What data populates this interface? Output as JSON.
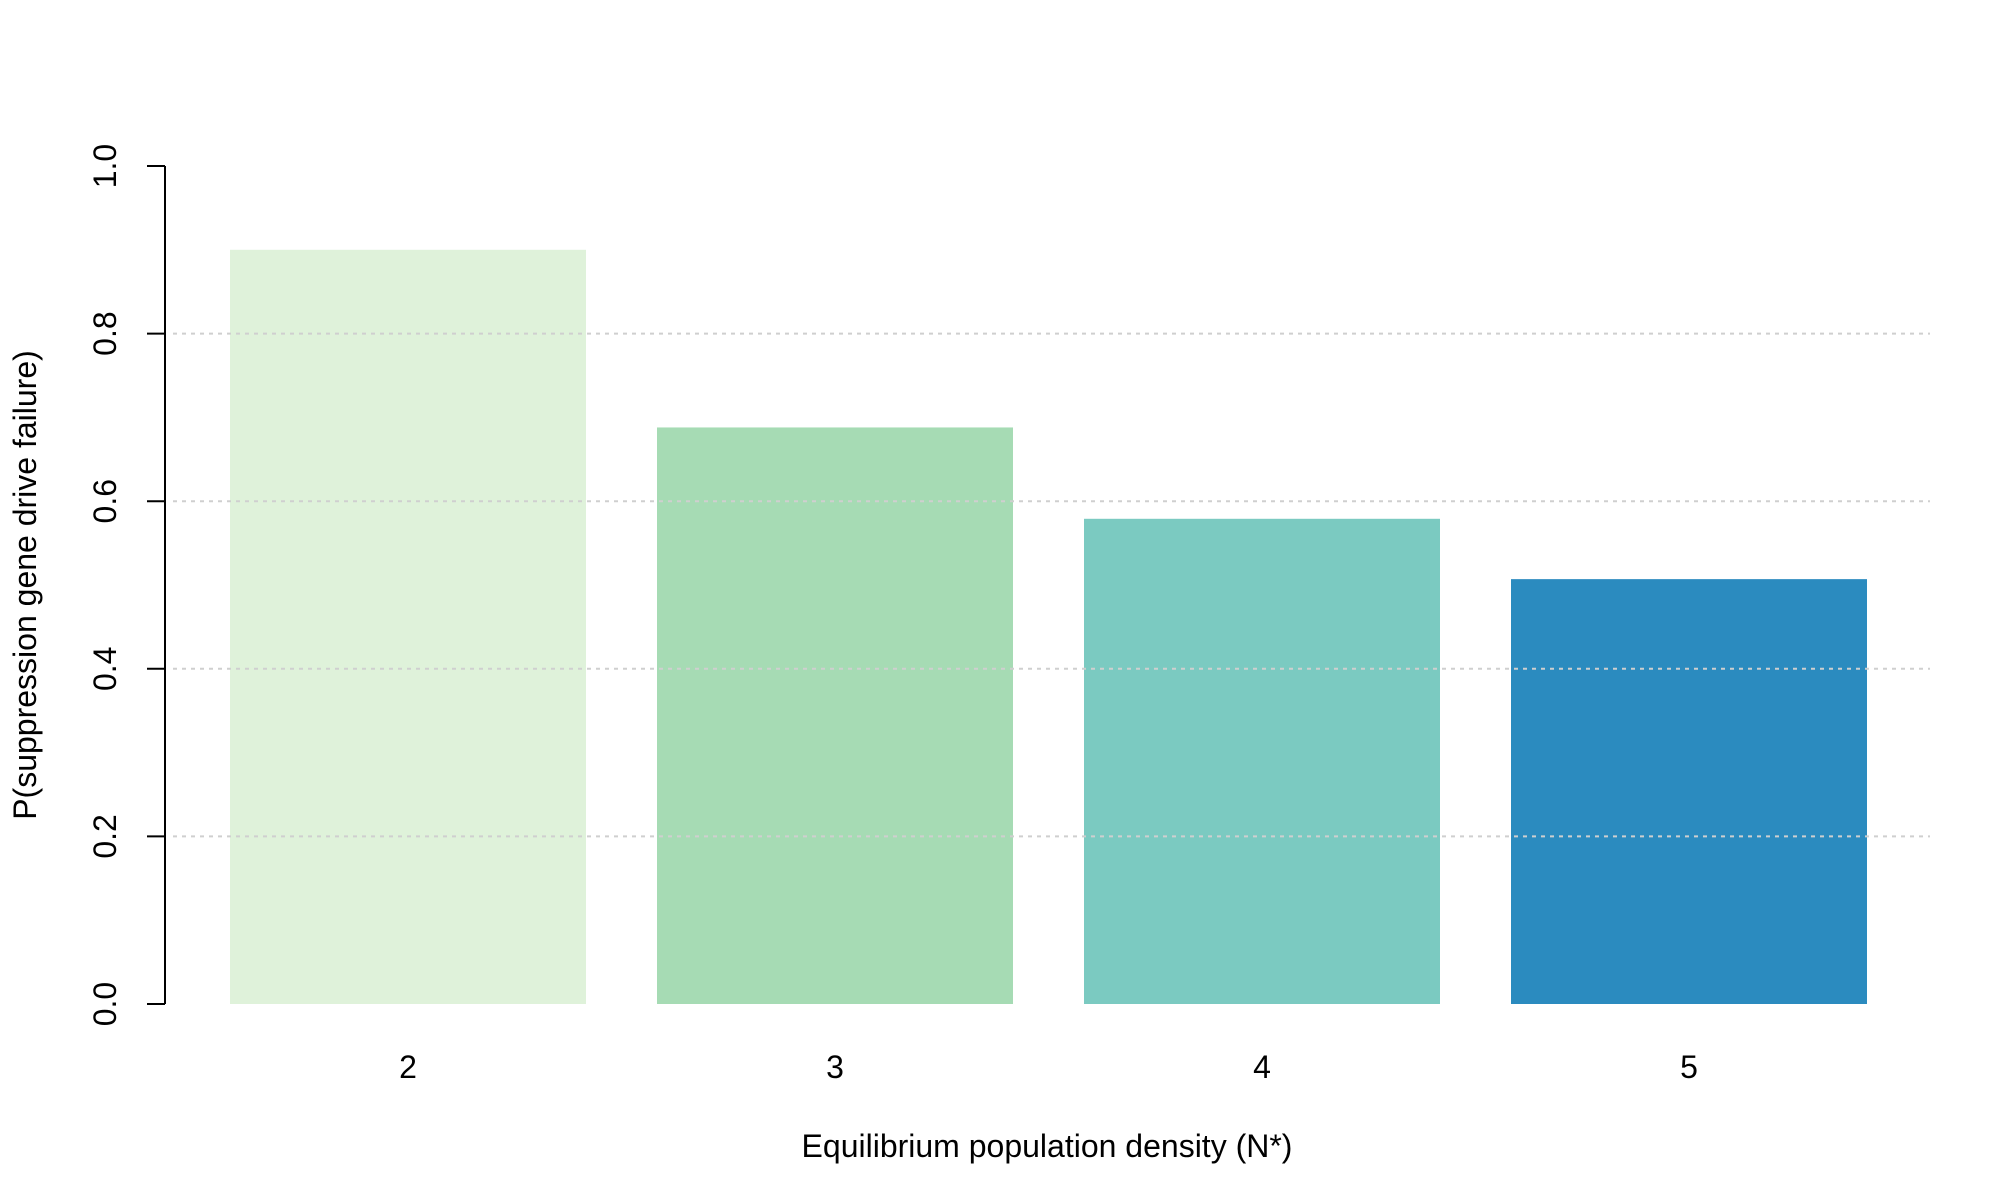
{
  "chart_data": {
    "type": "bar",
    "categories": [
      "2",
      "3",
      "4",
      "5"
    ],
    "values": [
      0.9,
      0.688,
      0.579,
      0.507
    ],
    "colors": [
      "#dff2da",
      "#a6dbb4",
      "#7bcac1",
      "#2b8bbf"
    ],
    "xlabel": "Equilibrium population density (N*)",
    "ylabel": "P(suppression gene drive failure)",
    "ylim": [
      0,
      1
    ],
    "yticks": [
      0,
      0.2,
      0.4,
      0.6,
      0.8,
      1
    ],
    "ytick_labels": [
      "0.0",
      "0.2",
      "0.4",
      "0.6",
      "0.8",
      "1.0"
    ],
    "grid": "horizontal dashed at 0.2, 0.4, 0.6, 0.8",
    "grid_color": "#cfcfcf"
  }
}
